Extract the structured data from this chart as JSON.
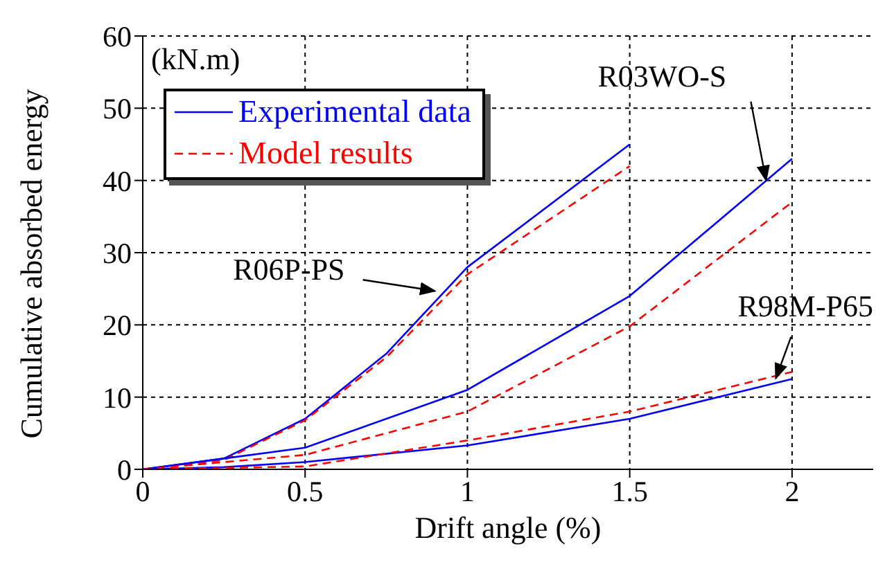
{
  "chart_data": {
    "type": "line",
    "xlabel": "Drift angle (%)",
    "ylabel": "Cumulative absorbed energy",
    "xlim": [
      0,
      2.25
    ],
    "xticks": [
      0,
      0.5,
      1,
      1.5,
      2
    ],
    "ylim": [
      0,
      60
    ],
    "yticks": [
      0,
      10,
      20,
      30,
      40,
      50,
      60
    ],
    "grid": true,
    "legend": "top left",
    "marker": "none",
    "series": [
      {
        "name": "Experimental data",
        "color": "#0000ff",
        "line_style": "solid",
        "x": [
          0,
          0.25,
          0.5,
          0.75,
          1,
          1.5
        ],
        "values": [
          0,
          1.5,
          7,
          16,
          28,
          45
        ]
      },
      {
        "name": "Model results",
        "color": "#ff0000",
        "line_style": "dashed",
        "x": [
          0,
          0.25,
          0.5,
          0.75,
          1,
          1.5
        ],
        "values": [
          0,
          1.3,
          6.8,
          15.5,
          27,
          42
        ]
      },
      {
        "color": "#0000ff",
        "line_style": "solid",
        "x": [
          0,
          0.25,
          0.5,
          1,
          1.5,
          2
        ],
        "values": [
          0,
          1.5,
          3,
          11,
          24,
          43
        ]
      },
      {
        "color": "#ff0000",
        "line_style": "dashed",
        "x": [
          0,
          0.25,
          0.5,
          1,
          1.5,
          2
        ],
        "values": [
          0,
          1,
          2,
          8,
          19.8,
          37
        ]
      },
      {
        "color": "#0000ff",
        "line_style": "solid",
        "x": [
          0,
          0.25,
          0.5,
          1,
          1.5,
          2
        ],
        "values": [
          0,
          0.3,
          1,
          3.3,
          7,
          12.5
        ]
      },
      {
        "color": "#ff0000",
        "line_style": "dashed",
        "x": [
          0,
          0.25,
          0.5,
          1,
          1.5,
          2
        ],
        "values": [
          0,
          0.2,
          0.4,
          4,
          8,
          13.5
        ]
      }
    ],
    "annotations": [
      "(kN.m)",
      {
        "text": "R06P-PS",
        "x": 0.9,
        "y": 24.7
      },
      {
        "text": "R03WO-S",
        "x": 1.92,
        "y": 40
      },
      {
        "text": "R98M-P65",
        "x": 1.95,
        "y": 12.6
      }
    ]
  }
}
